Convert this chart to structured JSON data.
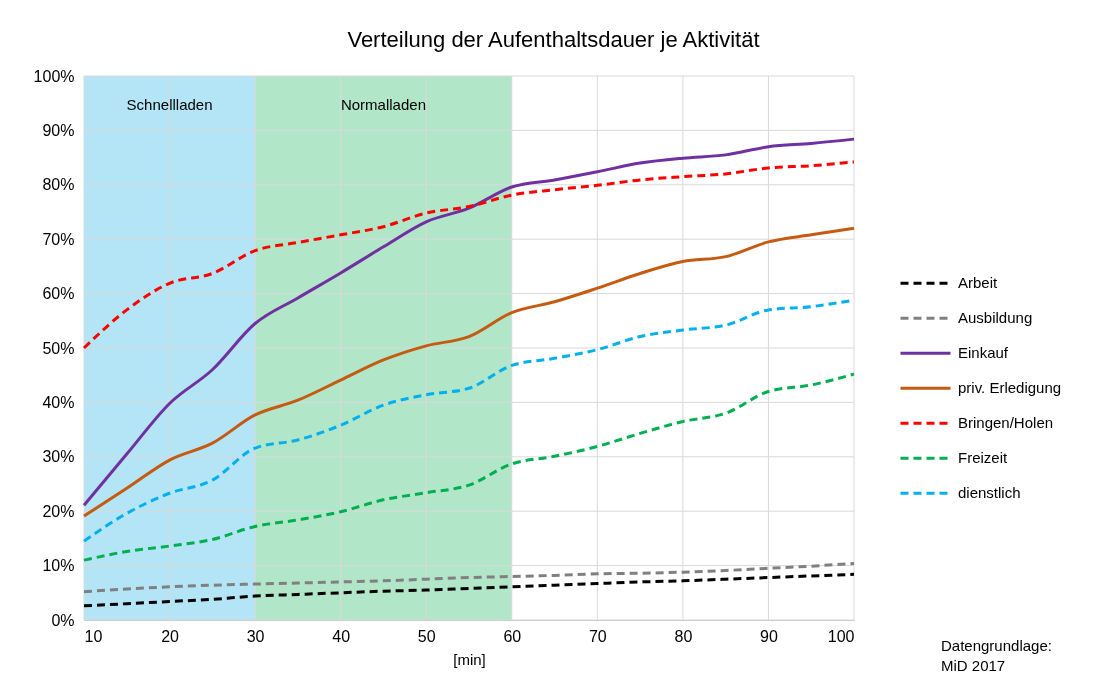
{
  "chart_data": {
    "type": "line",
    "title": "Verteilung der Aufenthaltsdauer je Aktivität",
    "xlabel": "[min]",
    "x": [
      10,
      15,
      20,
      25,
      30,
      35,
      40,
      45,
      50,
      55,
      60,
      65,
      70,
      75,
      80,
      85,
      90,
      95,
      100
    ],
    "xlim": [
      10,
      100
    ],
    "xticks": [
      10,
      20,
      30,
      40,
      50,
      60,
      70,
      80,
      90,
      100
    ],
    "ylim": [
      0,
      100
    ],
    "yticks": [
      {
        "value": 0,
        "label": "0%"
      },
      {
        "value": 10,
        "label": "10%"
      },
      {
        "value": 20,
        "label": "20%"
      },
      {
        "value": 30,
        "label": "30%"
      },
      {
        "value": 40,
        "label": "40%"
      },
      {
        "value": 50,
        "label": "50%"
      },
      {
        "value": 60,
        "label": "60%"
      },
      {
        "value": 70,
        "label": "70%"
      },
      {
        "value": 80,
        "label": "80%"
      },
      {
        "value": 90,
        "label": "90%"
      },
      {
        "value": 100,
        "label": "100%"
      }
    ],
    "series": [
      {
        "name": "Arbeit",
        "color": "#000000",
        "line_style": "dashed",
        "values": [
          2.6,
          3.0,
          3.4,
          3.8,
          4.4,
          4.7,
          5.0,
          5.3,
          5.5,
          5.8,
          6.1,
          6.4,
          6.7,
          7.0,
          7.2,
          7.5,
          7.8,
          8.1,
          8.4
        ]
      },
      {
        "name": "Ausbildung",
        "color": "#808080",
        "line_style": "dashed",
        "values": [
          5.2,
          5.7,
          6.1,
          6.4,
          6.6,
          6.8,
          7.0,
          7.2,
          7.5,
          7.8,
          8.0,
          8.2,
          8.5,
          8.6,
          8.8,
          9.1,
          9.5,
          9.9,
          10.4
        ]
      },
      {
        "name": "Einkauf",
        "color": "#7030a0",
        "line_style": "solid",
        "values": [
          21.1,
          30.5,
          39.8,
          46.0,
          54.5,
          59.2,
          63.8,
          68.6,
          73.2,
          75.7,
          79.6,
          80.9,
          82.4,
          84.0,
          84.9,
          85.5,
          87.0,
          87.6,
          88.4
        ]
      },
      {
        "name": "priv. Erledigung",
        "color": "#c55a11",
        "line_style": "solid",
        "values": [
          19.1,
          24.2,
          29.4,
          32.5,
          37.7,
          40.4,
          44.1,
          47.8,
          50.4,
          52.1,
          56.5,
          58.5,
          61.0,
          63.7,
          65.9,
          66.8,
          69.5,
          70.8,
          72.0
        ]
      },
      {
        "name": "Bringen/Holen",
        "color": "#ff0000",
        "line_style": "dashed",
        "values": [
          50.0,
          57.0,
          61.9,
          63.7,
          67.9,
          69.4,
          70.8,
          72.3,
          74.8,
          76.0,
          78.1,
          79.1,
          79.9,
          80.9,
          81.5,
          82.0,
          83.1,
          83.5,
          84.2
        ]
      },
      {
        "name": "Freizeit",
        "color": "#00b050",
        "line_style": "dashed",
        "values": [
          11.0,
          12.6,
          13.6,
          14.8,
          17.2,
          18.4,
          19.9,
          22.1,
          23.4,
          24.8,
          28.7,
          30.1,
          31.9,
          34.3,
          36.5,
          38.0,
          42.0,
          43.2,
          45.2
        ]
      },
      {
        "name": "dienstlich",
        "color": "#00b0f0",
        "line_style": "dashed",
        "values": [
          14.5,
          19.6,
          23.3,
          25.7,
          31.6,
          33.1,
          35.8,
          39.5,
          41.4,
          42.6,
          46.8,
          48.1,
          49.7,
          52.1,
          53.3,
          54.2,
          57.0,
          57.6,
          58.8
        ]
      }
    ],
    "bands": [
      {
        "axis": "x",
        "from": 10,
        "to": 30,
        "label": "Schnellladen",
        "color": "#b3e5f6"
      },
      {
        "axis": "x",
        "from": 30,
        "to": 60,
        "label": "Normalladen",
        "color": "#b2e6c9"
      }
    ],
    "grid": true,
    "legend": "right",
    "annotations": [
      "Datengrundlage:\nMiD 2017"
    ]
  }
}
